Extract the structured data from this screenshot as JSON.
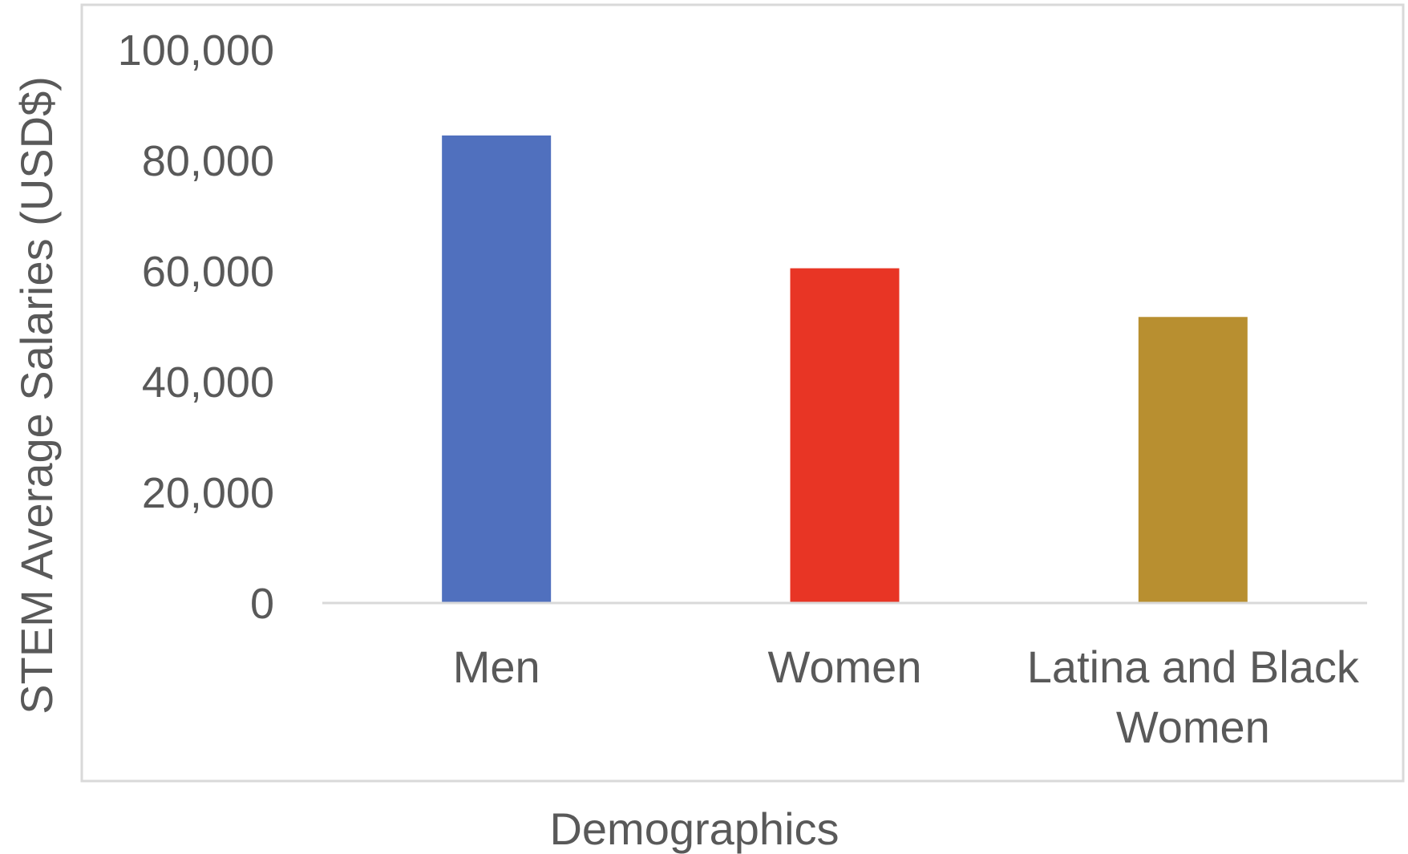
{
  "chart_data": {
    "type": "bar",
    "categories": [
      [
        "Men"
      ],
      [
        "Women"
      ],
      [
        "Latina and Black",
        "Women"
      ]
    ],
    "values": [
      84500,
      60500,
      51700
    ],
    "colors": [
      "#5070be",
      "#e83525",
      "#b88f30"
    ],
    "title": "",
    "xlabel": "Demographics",
    "ylabel": "STEM Average Salaries (USD$)",
    "ylim": [
      0,
      100000
    ],
    "yticks": [
      0,
      20000,
      40000,
      60000,
      80000,
      100000
    ],
    "ytick_labels": [
      "0",
      "20,000",
      "40,000",
      "60,000",
      "80,000",
      "100,000"
    ],
    "grid": false,
    "legend": "none"
  }
}
